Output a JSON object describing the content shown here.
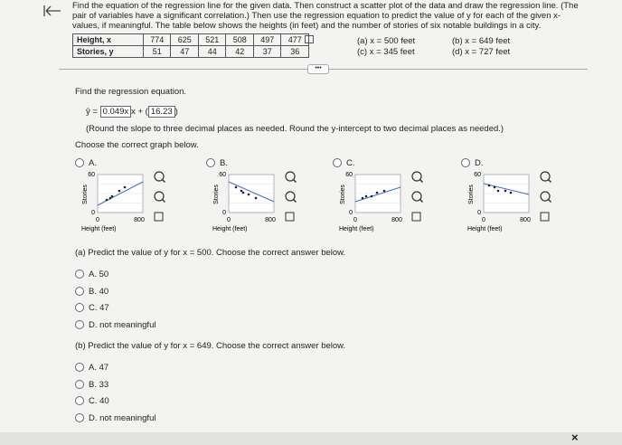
{
  "problem": {
    "text": "Find the equation of the regression line for the given data. Then construct a scatter plot of the data and draw the regression line. (The pair of variables have a significant correlation.) Then use the regression equation to predict the value of y for each of the given x-values, if meaningful. The table below shows the heights (in feet) and the number of stories of six notable buildings in a city.",
    "table": {
      "rows": [
        [
          "Height, x",
          774,
          625,
          521,
          508,
          497,
          477
        ],
        [
          "Stories, y",
          51,
          47,
          44,
          42,
          37,
          36
        ]
      ]
    },
    "x_values": [
      "(a) x = 500 feet",
      "(b) x = 649 feet",
      "(c) x = 345 feet",
      "(d) x = 727 feet"
    ]
  },
  "regression": {
    "prompt": "Find the regression equation.",
    "lhs": "ŷ =",
    "slope": "0.049x",
    "mid": "x +",
    "intercept": "16.23",
    "note": "(Round the slope to three decimal places as needed. Round the y-intercept to two decimal places as needed.)"
  },
  "graph_question": {
    "prompt": "Choose the correct graph below.",
    "options": [
      "A.",
      "B.",
      "C.",
      "D."
    ],
    "axis": {
      "y_top": "60",
      "y_bottom": "0",
      "x_left": "0",
      "x_right": "800",
      "y_label": "Stories",
      "x_label": "Height (feet)"
    }
  },
  "part_a": {
    "prompt": "(a) Predict the value of y for x = 500. Choose the correct answer below.",
    "options": [
      "A. 50",
      "B. 40",
      "C. 47",
      "D. not meaningful"
    ]
  },
  "part_b": {
    "prompt": "(b) Predict the value of y for x = 649. Choose the correct answer below.",
    "options": [
      "A. 47",
      "B. 33",
      "C. 40",
      "D. not meaningful"
    ]
  }
}
